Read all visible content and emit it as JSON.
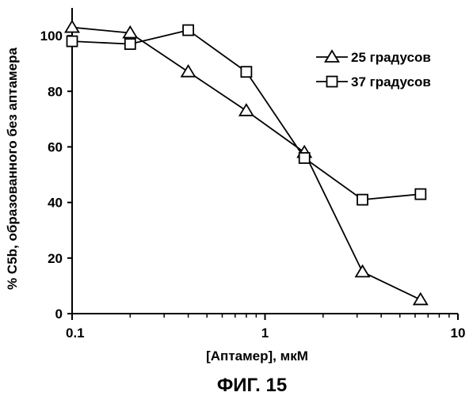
{
  "chart_data": {
    "type": "line",
    "xscale": "log",
    "xlim": [
      0.1,
      10
    ],
    "ylim": [
      0,
      110
    ],
    "xlabel": "[Аптамер], мкМ",
    "ylabel": "% C5b, образованного без аптамера",
    "xticks": [
      0.1,
      1,
      10
    ],
    "xtick_labels": [
      "0.1",
      "1",
      "10"
    ],
    "yticks": [
      0,
      20,
      40,
      60,
      80,
      100
    ],
    "ytick_labels": [
      "0",
      "20",
      "40",
      "60",
      "80",
      "100"
    ],
    "grid": false,
    "legend_position": "top-right",
    "series": [
      {
        "name": "25 градусов",
        "marker": "triangle",
        "x": [
          0.1,
          0.2,
          0.4,
          0.8,
          1.6,
          3.2,
          6.4
        ],
        "y": [
          103,
          101,
          87,
          73,
          58,
          15,
          5
        ]
      },
      {
        "name": "37 градусов",
        "marker": "square",
        "x": [
          0.1,
          0.2,
          0.4,
          0.8,
          1.6,
          3.2,
          6.4
        ],
        "y": [
          98,
          97,
          102,
          87,
          56,
          41,
          43
        ]
      }
    ]
  },
  "figure_caption": "ФИГ. 15"
}
